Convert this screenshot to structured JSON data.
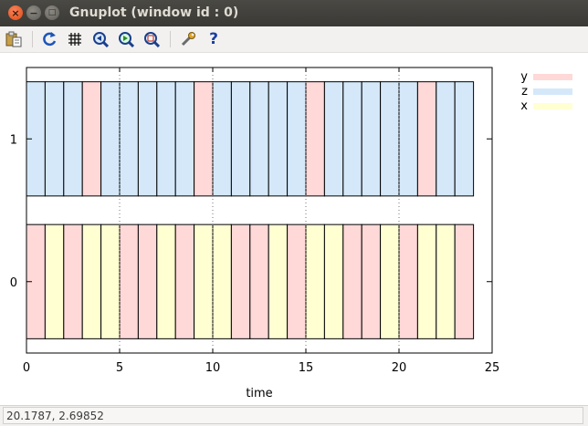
{
  "window": {
    "title": "Gnuplot (window id : 0)",
    "close_glyph": "×",
    "minimize_glyph": "−",
    "maximize_glyph": "□"
  },
  "toolbar": {
    "items": [
      {
        "name": "copy-to-clipboard-icon"
      },
      {
        "name": "replot-icon"
      },
      {
        "name": "grid-icon"
      },
      {
        "name": "previous-zoom-icon"
      },
      {
        "name": "next-zoom-icon"
      },
      {
        "name": "autoscale-icon"
      },
      {
        "name": "options-icon"
      },
      {
        "name": "help-icon",
        "label": "?"
      }
    ]
  },
  "status": {
    "coordinates": "20.1787,  2.69852"
  },
  "colors": {
    "y": "#ffd8d8",
    "z": "#d4e8fa",
    "x": "#ffffd2"
  },
  "chart_data": {
    "type": "bar",
    "xlabel": "time",
    "ylabel": "",
    "xlim": [
      0,
      25
    ],
    "ylim": [
      -0.5,
      1.5
    ],
    "x_ticks": [
      "0",
      "5",
      "10",
      "15",
      "20",
      "25"
    ],
    "x_tick_values": [
      0,
      5,
      10,
      15,
      20,
      25
    ],
    "grid": "dotted vertical at major ticks",
    "legend_position": "top-right outside",
    "legend": [
      {
        "label": "y",
        "key": "y"
      },
      {
        "label": "z",
        "key": "z"
      },
      {
        "label": "x",
        "key": "x"
      }
    ],
    "rows": [
      {
        "label": "0",
        "segments": [
          "y",
          "x",
          "y",
          "x",
          "x",
          "y",
          "y",
          "x",
          "y",
          "x",
          "x",
          "y",
          "y",
          "x",
          "y",
          "x",
          "x",
          "y",
          "y",
          "x",
          "y",
          "x",
          "x",
          "y"
        ]
      },
      {
        "label": "1",
        "segments": [
          "z",
          "z",
          "z",
          "y",
          "z",
          "z",
          "z",
          "z",
          "z",
          "y",
          "z",
          "z",
          "z",
          "z",
          "z",
          "y",
          "z",
          "z",
          "z",
          "z",
          "z",
          "y",
          "z",
          "z"
        ]
      }
    ],
    "segment_width": 1,
    "time_start": 0,
    "time_end": 24
  }
}
